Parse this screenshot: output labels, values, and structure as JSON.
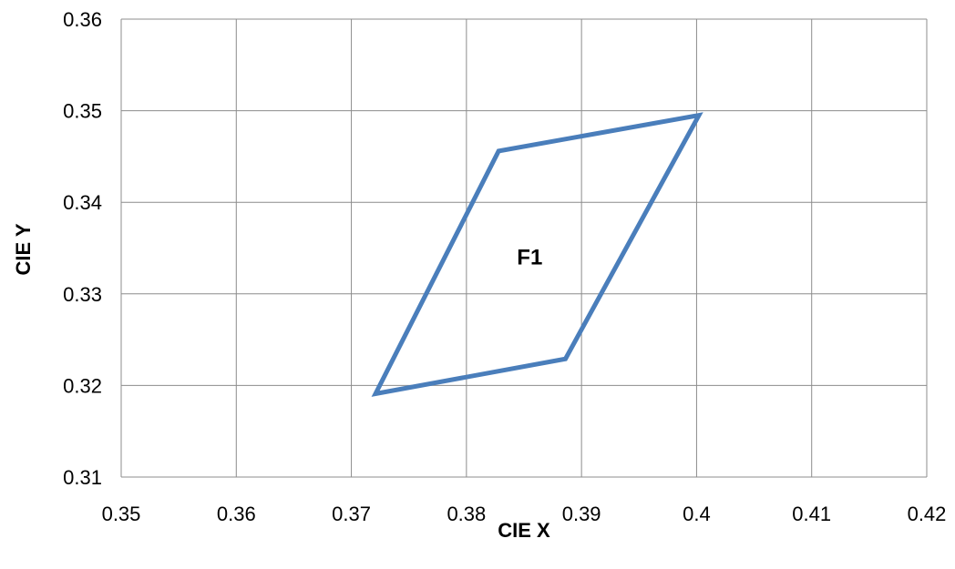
{
  "chart_data": {
    "type": "scatter",
    "title": "",
    "xlabel": "CIE X",
    "ylabel": "CIE Y",
    "xlim": [
      0.35,
      0.42
    ],
    "ylim": [
      0.31,
      0.36
    ],
    "x_ticks": [
      0.35,
      0.36,
      0.37,
      0.38,
      0.39,
      0.4,
      0.41,
      0.42
    ],
    "x_tick_labels": [
      "0.35",
      "0.36",
      "0.37",
      "0.38",
      "0.39",
      "0.4",
      "0.41",
      "0.42"
    ],
    "y_ticks": [
      0.31,
      0.32,
      0.33,
      0.34,
      0.35,
      0.36
    ],
    "y_tick_labels": [
      "0.31",
      "0.32",
      "0.33",
      "0.34",
      "0.35",
      "0.36"
    ],
    "grid": true,
    "series": [
      {
        "closed": true,
        "color": "#4a7ebb",
        "points": [
          {
            "x": 0.3721,
            "y": 0.3191
          },
          {
            "x": 0.3828,
            "y": 0.3456
          },
          {
            "x": 0.4002,
            "y": 0.3495
          },
          {
            "x": 0.3886,
            "y": 0.3229
          }
        ]
      }
    ],
    "annotations": [
      {
        "text": "F1",
        "x": 0.3855,
        "y": 0.334
      }
    ]
  }
}
